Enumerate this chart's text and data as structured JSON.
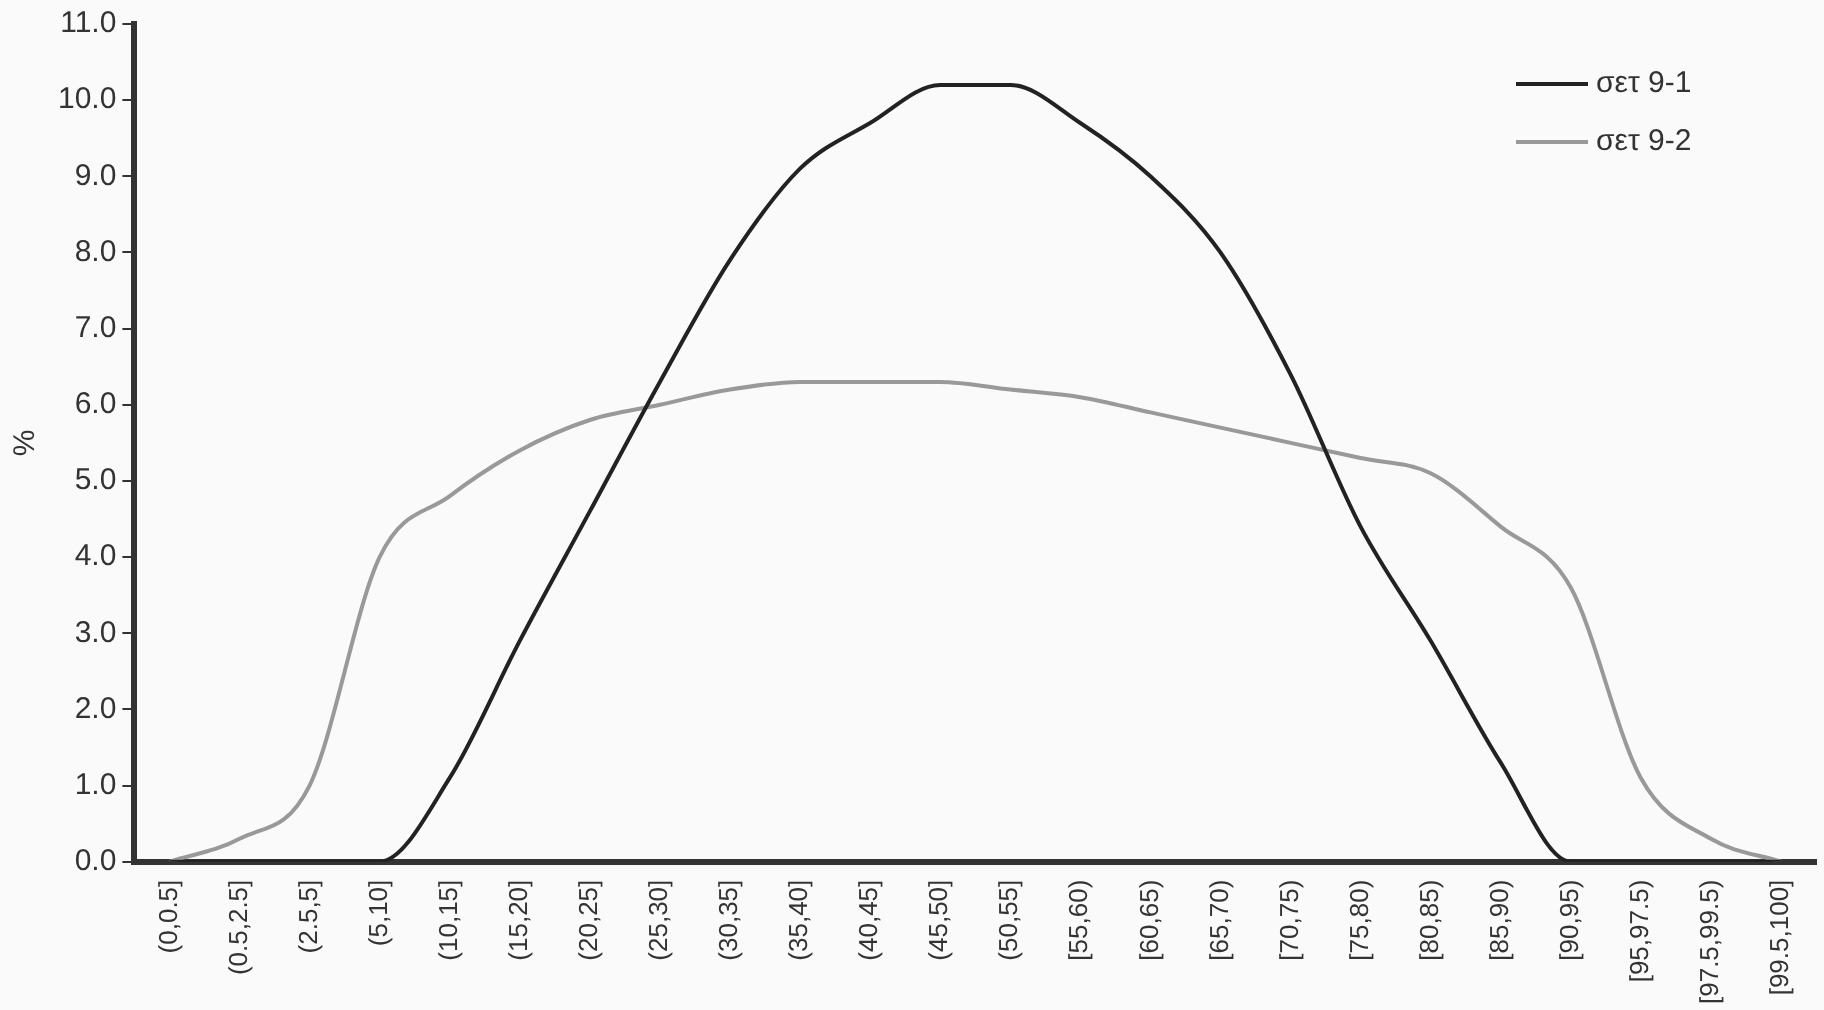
{
  "chart_data": {
    "type": "line",
    "ylabel": "%",
    "categories": [
      "(0,0.5]",
      "(0.5,2.5]",
      "(2.5,5]",
      "(5,10]",
      "(10,15]",
      "(15,20]",
      "(20,25]",
      "(25,30]",
      "(30,35]",
      "(35,40]",
      "(40,45]",
      "(45,50]",
      "(50,55]",
      "[55,60)",
      "[60,65)",
      "[65,70)",
      "[70,75)",
      "[75,80)",
      "[80,85)",
      "[85,90)",
      "[90,95)",
      "[95,97.5)",
      "[97.5,99.5)",
      "[99.5,100]"
    ],
    "series": [
      {
        "name": "σετ 9-1",
        "color": "#222222",
        "values": [
          0,
          0,
          0,
          0,
          1.1,
          2.9,
          4.6,
          6.3,
          7.9,
          9.1,
          9.7,
          10.2,
          10.2,
          9.7,
          9.0,
          8.0,
          6.4,
          4.4,
          2.9,
          1.3,
          0,
          0,
          0,
          0
        ]
      },
      {
        "name": "σετ 9-2",
        "color": "#999999",
        "values": [
          0,
          0.3,
          1.0,
          4.0,
          4.8,
          5.4,
          5.8,
          6.0,
          6.2,
          6.3,
          6.3,
          6.3,
          6.2,
          6.1,
          5.9,
          5.7,
          5.5,
          5.3,
          5.1,
          4.4,
          3.6,
          1.1,
          0.3,
          0
        ]
      }
    ],
    "ylim": [
      0,
      11
    ],
    "yticks": [
      {
        "value": 0,
        "label": "0.0"
      },
      {
        "value": 1,
        "label": "1.0"
      },
      {
        "value": 2,
        "label": "2.0"
      },
      {
        "value": 3,
        "label": "3.0"
      },
      {
        "value": 4,
        "label": "4.0"
      },
      {
        "value": 5,
        "label": "5.0"
      },
      {
        "value": 6,
        "label": "6.0"
      },
      {
        "value": 7,
        "label": "7.0"
      },
      {
        "value": 8,
        "label": "8.0"
      },
      {
        "value": 9,
        "label": "9.0"
      },
      {
        "value": 10,
        "label": "10.0"
      },
      {
        "value": 11,
        "label": "11.0"
      }
    ],
    "grid": false,
    "legend": "top right",
    "marker": "none",
    "line_style": "solid"
  }
}
